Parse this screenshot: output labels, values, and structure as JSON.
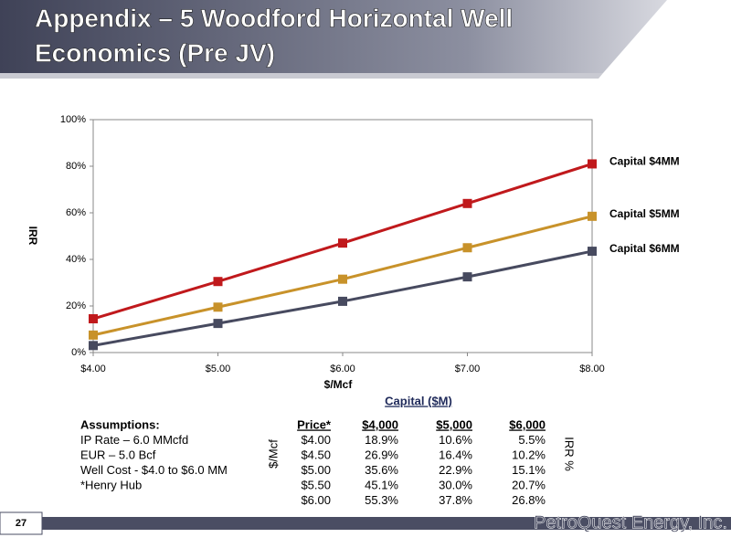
{
  "header": {
    "title_lines": [
      "Appendix – 5   Woodford Horizontal Well",
      "Economics (Pre JV)"
    ]
  },
  "chart_data": {
    "type": "line",
    "x_label": "$/Mcf",
    "y_label": "IRR",
    "x": [
      4,
      5,
      6,
      7,
      8
    ],
    "series": [
      {
        "name": "Capital $4MM",
        "color": "#c0191c",
        "values": [
          14.5,
          30.5,
          47,
          64,
          81
        ]
      },
      {
        "name": "Capital $5MM",
        "color": "#c8922a",
        "values": [
          7.5,
          19.5,
          31.5,
          45,
          58.5
        ]
      },
      {
        "name": "Capital $6MM",
        "color": "#474a5f",
        "values": [
          3,
          12.5,
          22,
          32.5,
          43.5
        ]
      }
    ],
    "xlim": [
      4,
      8
    ],
    "xticks": [
      {
        "value": 4,
        "label": "$4.00"
      },
      {
        "value": 5,
        "label": "$5.00"
      },
      {
        "value": 6,
        "label": "$6.00"
      },
      {
        "value": 7,
        "label": "$7.00"
      },
      {
        "value": 8,
        "label": "$8.00"
      }
    ],
    "ylim": [
      0,
      100
    ],
    "yticks": [
      {
        "value": 0,
        "label": "0%"
      },
      {
        "value": 20,
        "label": "20%"
      },
      {
        "value": 40,
        "label": "40%"
      },
      {
        "value": 60,
        "label": "60%"
      },
      {
        "value": 80,
        "label": "80%"
      },
      {
        "value": 100,
        "label": "100%"
      }
    ],
    "grid": false
  },
  "table": {
    "caption": "Capital ($M)",
    "row_label": "$/Mcf",
    "value_label": "IRR %",
    "assumptions": [
      "Assumptions:",
      "IP Rate – 6.0 MMcfd",
      "EUR – 5.0 Bcf",
      "Well Cost - $4.0 to $6.0 MM",
      "*Henry Hub"
    ],
    "columns": [
      "Price*",
      "$4,000",
      "$5,000",
      "$6,000"
    ],
    "rows": [
      [
        "$4.00",
        "18.9%",
        "10.6%",
        "5.5%"
      ],
      [
        "$4.50",
        "26.9%",
        "16.4%",
        "10.2%"
      ],
      [
        "$5.00",
        "35.6%",
        "22.9%",
        "15.1%"
      ],
      [
        "$5.50",
        "45.1%",
        "30.0%",
        "20.7%"
      ],
      [
        "$6.00",
        "55.3%",
        "37.8%",
        "26.8%"
      ]
    ]
  },
  "footer": {
    "page": "27",
    "logo": "PetroQuest Energy, Inc."
  }
}
